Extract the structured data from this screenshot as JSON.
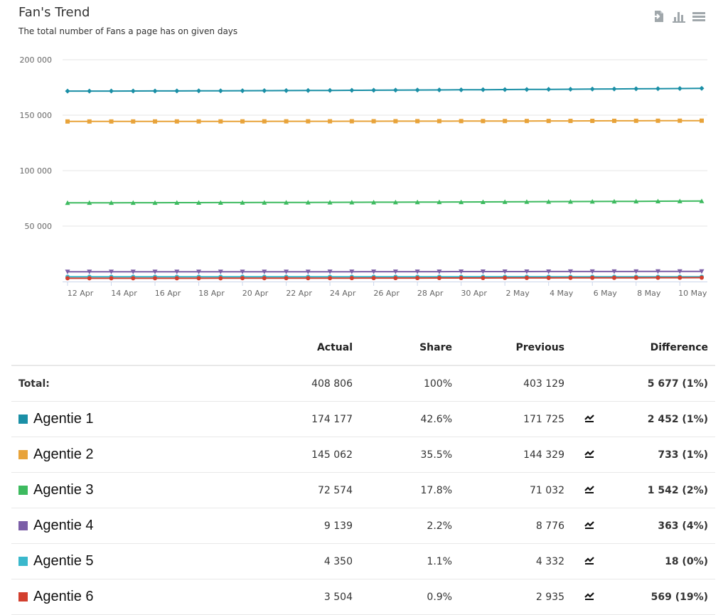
{
  "header": {
    "title": "Fan's Trend",
    "subtitle": "The total number of Fans a page has on given days"
  },
  "toolbar": {
    "icons": [
      "export-icon",
      "bar-chart-icon",
      "menu-icon"
    ]
  },
  "colors": {
    "Agentie 1": "#1a8fa6",
    "Agentie 2": "#e8a33a",
    "Agentie 3": "#3dba5f",
    "Agentie 4": "#7b5ea7",
    "Agentie 5": "#3ab8cc",
    "Agentie 6": "#d23f2e",
    "positive": "#22c322"
  },
  "chart_data": {
    "type": "line",
    "title": "Fan's Trend",
    "subtitle": "The total number of Fans a page has on given days",
    "x": [
      "12 Apr",
      "13 Apr",
      "14 Apr",
      "15 Apr",
      "16 Apr",
      "17 Apr",
      "18 Apr",
      "19 Apr",
      "20 Apr",
      "21 Apr",
      "22 Apr",
      "23 Apr",
      "24 Apr",
      "25 Apr",
      "26 Apr",
      "27 Apr",
      "28 Apr",
      "29 Apr",
      "30 Apr",
      "1 May",
      "2 May",
      "3 May",
      "4 May",
      "5 May",
      "6 May",
      "7 May",
      "8 May",
      "9 May",
      "10 May",
      "11 May"
    ],
    "x_tick_labels": [
      "12 Apr",
      "14 Apr",
      "16 Apr",
      "18 Apr",
      "20 Apr",
      "22 Apr",
      "24 Apr",
      "26 Apr",
      "28 Apr",
      "30 Apr",
      "2 May",
      "4 May",
      "6 May",
      "8 May",
      "10 May"
    ],
    "y_tick_labels": [
      "200 000",
      "150 000",
      "100 000",
      "50 000"
    ],
    "ylim": [
      0,
      200000
    ],
    "grid": true,
    "series": [
      {
        "name": "Agentie 1",
        "marker": "diamond",
        "start": 171725,
        "end": 174177
      },
      {
        "name": "Agentie 2",
        "marker": "square",
        "start": 144329,
        "end": 145062
      },
      {
        "name": "Agentie 3",
        "marker": "triangle",
        "start": 71032,
        "end": 72574
      },
      {
        "name": "Agentie 4",
        "marker": "triangle-down",
        "start": 8776,
        "end": 9139
      },
      {
        "name": "Agentie 5",
        "marker": "circle",
        "start": 4332,
        "end": 4350
      },
      {
        "name": "Agentie 6",
        "marker": "circle",
        "start": 2935,
        "end": 3504
      }
    ]
  },
  "table": {
    "headers": {
      "name": "",
      "actual": "Actual",
      "share": "Share",
      "previous": "Previous",
      "difference": "Difference"
    },
    "total": {
      "label": "Total:",
      "actual": "408 806",
      "share": "100%",
      "previous": "403 129",
      "difference": "5 677 (1%)"
    },
    "rows": [
      {
        "name": "Agentie 1",
        "actual": "174 177",
        "share": "42.6%",
        "previous": "171 725",
        "difference": "2 452 (1%)"
      },
      {
        "name": "Agentie 2",
        "actual": "145 062",
        "share": "35.5%",
        "previous": "144 329",
        "difference": "733 (1%)"
      },
      {
        "name": "Agentie 3",
        "actual": "72 574",
        "share": "17.8%",
        "previous": "71 032",
        "difference": "1 542 (2%)"
      },
      {
        "name": "Agentie 4",
        "actual": "9 139",
        "share": "2.2%",
        "previous": "8 776",
        "difference": "363 (4%)"
      },
      {
        "name": "Agentie 5",
        "actual": "4 350",
        "share": "1.1%",
        "previous": "4 332",
        "difference": "18 (0%)"
      },
      {
        "name": "Agentie 6",
        "actual": "3 504",
        "share": "0.9%",
        "previous": "2 935",
        "difference": "569 (19%)"
      }
    ]
  }
}
